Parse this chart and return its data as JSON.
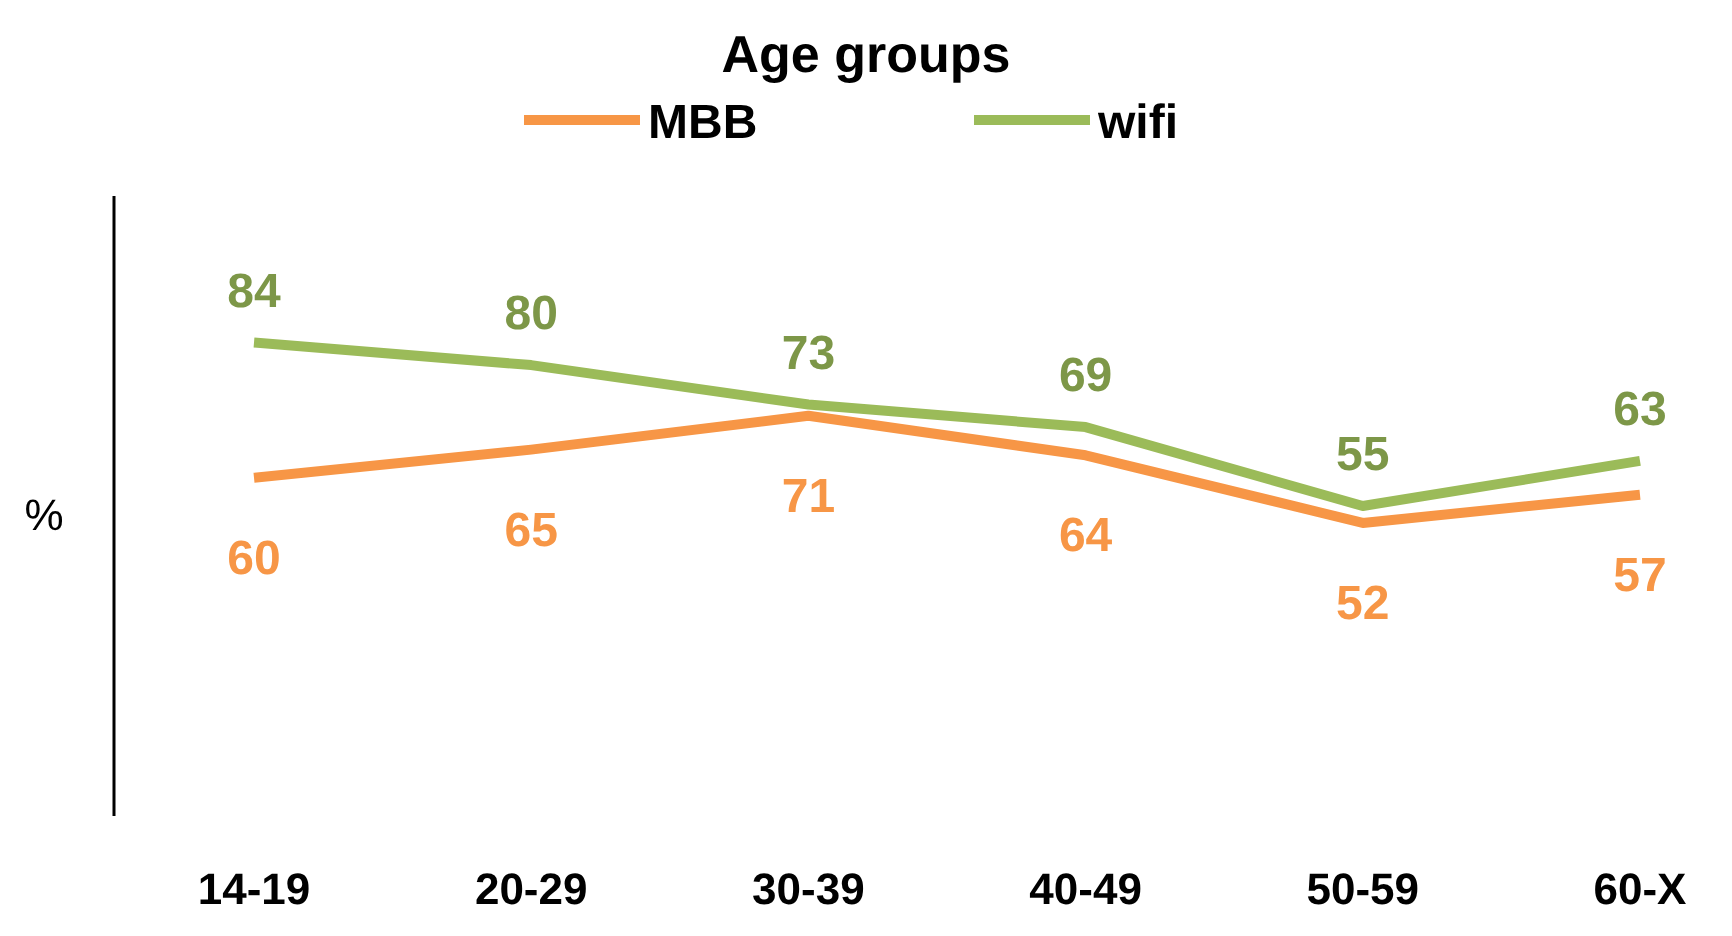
{
  "chart_data": {
    "type": "line",
    "title": "Age groups",
    "ylabel": "%",
    "categories": [
      "14-19",
      "20-29",
      "30-39",
      "40-49",
      "50-59",
      "60-X"
    ],
    "series": [
      {
        "name": "MBB",
        "color": "#f79646",
        "values": [
          60,
          65,
          71,
          64,
          52,
          57
        ]
      },
      {
        "name": "wifi",
        "color": "#9bbb59",
        "values": [
          84,
          80,
          73,
          69,
          55,
          63
        ]
      }
    ],
    "ylim": [
      0,
      110
    ],
    "tick_labels": "x",
    "data_labels": true,
    "legend": "top",
    "grid": false,
    "marker": "none",
    "line_style": "solid"
  }
}
